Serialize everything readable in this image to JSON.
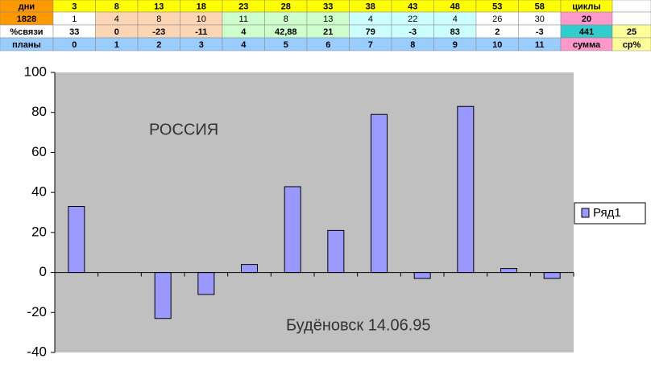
{
  "table": {
    "rows": [
      [
        "дни",
        "3",
        "8",
        "13",
        "18",
        "23",
        "28",
        "33",
        "38",
        "43",
        "48",
        "53",
        "58",
        "циклы"
      ],
      [
        "1828",
        "1",
        "4",
        "8",
        "10",
        "11",
        "8",
        "13",
        "4",
        "22",
        "4",
        "26",
        "30",
        "20"
      ],
      [
        "%связи",
        "33",
        "0",
        "-23",
        "-11",
        "4",
        "42,88",
        "21",
        "79",
        "-3",
        "83",
        "2",
        "-3",
        "441",
        "25"
      ],
      [
        "планы",
        "0",
        "1",
        "2",
        "3",
        "4",
        "5",
        "6",
        "7",
        "8",
        "9",
        "10",
        "11",
        "сумма",
        "ср%"
      ]
    ]
  },
  "chart_data": {
    "type": "bar",
    "categories": [
      null,
      null,
      null,
      null,
      null,
      null,
      null,
      null,
      null,
      null,
      null,
      null
    ],
    "series": [
      {
        "name": "Ряд1",
        "color": "#9999ff",
        "values": [
          33,
          0,
          -23,
          -11,
          4,
          42.88,
          21,
          79,
          -3,
          83,
          2,
          -3
        ]
      }
    ],
    "ylim": [
      -40,
      100
    ],
    "yticks": [
      -40,
      -20,
      0,
      20,
      40,
      60,
      80,
      100
    ],
    "grid": false,
    "legend": "right",
    "annotations": [
      "РОССИЯ",
      "Будёновск 14.06.95"
    ]
  }
}
